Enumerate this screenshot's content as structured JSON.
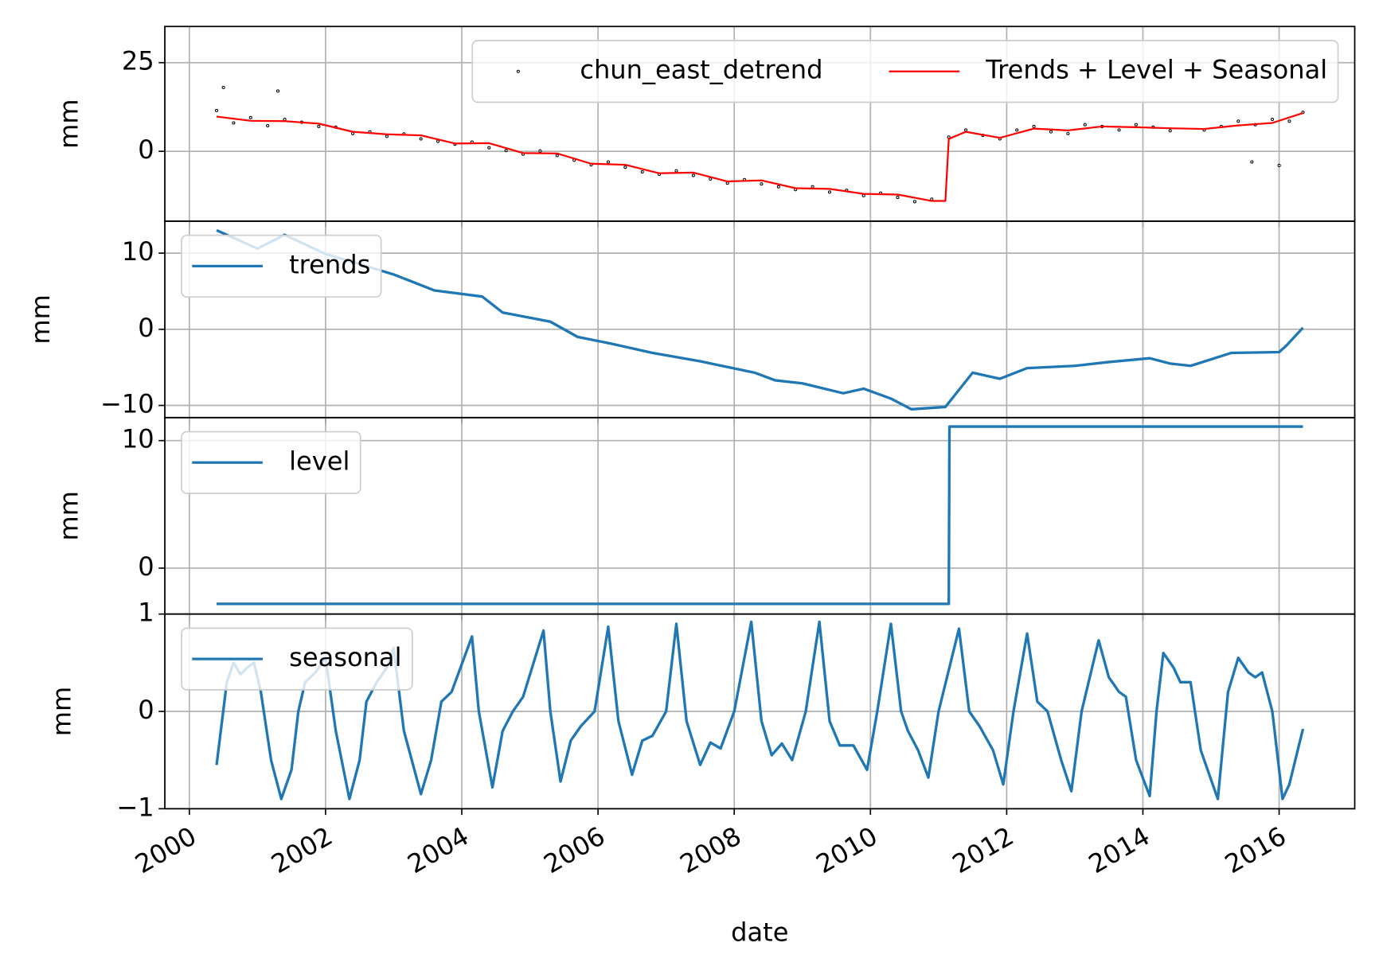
{
  "chart_data": [
    {
      "type": "line",
      "ylabel": "mm",
      "ylim": [
        -19.7,
        35.2
      ],
      "yticks": [
        0,
        25
      ],
      "xlim": [
        1999.64,
        2017.11
      ],
      "xticks": [
        2000,
        2002,
        2004,
        2006,
        2008,
        2010,
        2012,
        2014,
        2016
      ],
      "grid": true,
      "legend": "upper right",
      "series": [
        {
          "name": "chun_east_detrend",
          "type": "scatter",
          "color": "#000000",
          "x": [
            2000.4,
            2000.65,
            2000.9,
            2001.15,
            2001.4,
            2001.65,
            2001.9,
            2002.15,
            2002.4,
            2002.65,
            2002.9,
            2003.15,
            2003.4,
            2003.65,
            2003.9,
            2004.15,
            2004.4,
            2004.65,
            2004.9,
            2005.15,
            2005.4,
            2005.65,
            2005.9,
            2006.15,
            2006.4,
            2006.65,
            2006.9,
            2007.15,
            2007.4,
            2007.65,
            2007.9,
            2008.15,
            2008.4,
            2008.65,
            2008.9,
            2009.15,
            2009.4,
            2009.65,
            2009.9,
            2010.15,
            2010.4,
            2010.65,
            2010.9,
            2011.15,
            2011.4,
            2011.65,
            2011.9,
            2012.15,
            2012.4,
            2012.65,
            2012.9,
            2013.15,
            2013.4,
            2013.65,
            2013.9,
            2014.15,
            2014.4,
            2014.9,
            2015.15,
            2015.4,
            2015.65,
            2015.9,
            2016.15,
            2016.35,
            2000.5,
            2001.3,
            2015.6,
            2016.0
          ],
          "values": [
            11.5,
            8.0,
            9.5,
            7.2,
            9.0,
            8.2,
            7.0,
            6.8,
            5.0,
            5.5,
            4.2,
            4.9,
            3.5,
            2.8,
            2.0,
            2.6,
            1.0,
            0.2,
            -0.8,
            0.1,
            -1.2,
            -2.5,
            -3.8,
            -3.0,
            -4.5,
            -5.8,
            -6.5,
            -5.5,
            -6.8,
            -7.8,
            -9.0,
            -8.0,
            -9.2,
            -10.0,
            -10.8,
            -10.0,
            -11.5,
            -11.0,
            -12.5,
            -11.8,
            -13.0,
            -14.2,
            -13.5,
            4.0,
            6.0,
            4.5,
            3.5,
            6.0,
            7.0,
            5.5,
            5.0,
            7.5,
            7.0,
            6.0,
            7.5,
            6.8,
            5.8,
            6.0,
            7.0,
            8.5,
            7.5,
            9.0,
            8.5,
            11.0,
            18,
            17,
            -3,
            -4
          ]
        },
        {
          "name": "Trends + Level + Seasonal",
          "type": "line",
          "color": "#ff0000",
          "x": [
            2000.4,
            2000.9,
            2001.4,
            2001.9,
            2002.4,
            2002.9,
            2003.4,
            2003.9,
            2004.4,
            2004.9,
            2005.4,
            2005.9,
            2006.4,
            2006.9,
            2007.4,
            2007.9,
            2008.4,
            2008.9,
            2009.4,
            2009.9,
            2010.4,
            2010.9,
            2011.1,
            2011.15,
            2011.4,
            2011.9,
            2012.4,
            2012.9,
            2013.4,
            2013.9,
            2014.4,
            2014.9,
            2015.4,
            2015.9,
            2016.35
          ],
          "values": [
            9.8,
            8.6,
            8.5,
            7.8,
            5.5,
            4.8,
            4.5,
            2.2,
            2.3,
            -0.5,
            -0.6,
            -3.5,
            -3.8,
            -6.2,
            -6.0,
            -8.5,
            -8.2,
            -10.4,
            -10.6,
            -12.0,
            -12.2,
            -14.0,
            -14.0,
            3.5,
            5.5,
            3.8,
            6.4,
            5.9,
            7.0,
            6.8,
            6.5,
            6.3,
            7.3,
            8.0,
            10.8
          ]
        }
      ]
    },
    {
      "type": "line",
      "ylabel": "mm",
      "ylim": [
        -11.6,
        14.2
      ],
      "yticks": [
        {
          "value": -10,
          "label": "−10"
        },
        0,
        10
      ],
      "xlim": [
        1999.64,
        2017.11
      ],
      "xticks": [
        2000,
        2002,
        2004,
        2006,
        2008,
        2010,
        2012,
        2014,
        2016
      ],
      "grid": true,
      "legend": "upper left",
      "series": [
        {
          "name": "trends",
          "type": "line",
          "color": "#1f77b4",
          "x": [
            2000.4,
            2001.0,
            2001.4,
            2002.0,
            2003.0,
            2003.6,
            2004.3,
            2004.6,
            2005.3,
            2005.7,
            2006.2,
            2006.8,
            2007.5,
            2008.3,
            2008.6,
            2009.0,
            2009.6,
            2009.9,
            2010.3,
            2010.6,
            2011.1,
            2011.5,
            2011.9,
            2012.3,
            2013.0,
            2013.5,
            2014.1,
            2014.4,
            2014.7,
            2015.3,
            2016.0,
            2016.1,
            2016.35
          ],
          "values": [
            13.0,
            10.6,
            12.4,
            9.9,
            7.2,
            5.1,
            4.3,
            2.2,
            1.0,
            -1.0,
            -1.9,
            -3.1,
            -4.2,
            -5.7,
            -6.7,
            -7.1,
            -8.4,
            -7.8,
            -9.1,
            -10.5,
            -10.2,
            -5.7,
            -6.5,
            -5.1,
            -4.8,
            -4.3,
            -3.8,
            -4.5,
            -4.8,
            -3.1,
            -3.0,
            -2.2,
            0.2
          ]
        }
      ]
    },
    {
      "type": "line",
      "ylabel": "mm",
      "ylim": [
        -3.6,
        11.8
      ],
      "yticks": [
        0,
        10
      ],
      "xlim": [
        1999.64,
        2017.11
      ],
      "xticks": [
        2000,
        2002,
        2004,
        2006,
        2008,
        2010,
        2012,
        2014,
        2016
      ],
      "grid": true,
      "legend": "upper left",
      "series": [
        {
          "name": "level",
          "type": "line",
          "color": "#1f77b4",
          "x": [
            2000.4,
            2011.15,
            2011.16,
            2016.35
          ],
          "values": [
            -2.8,
            -2.8,
            11.1,
            11.1
          ]
        }
      ]
    },
    {
      "type": "line",
      "ylabel": "mm",
      "xlabel": "date",
      "ylim": [
        -1,
        1
      ],
      "yticks": [
        {
          "value": -1,
          "label": "−1"
        },
        0,
        1
      ],
      "xlim": [
        1999.64,
        2017.11
      ],
      "xticks": [
        2000,
        2002,
        2004,
        2006,
        2008,
        2010,
        2012,
        2014,
        2016
      ],
      "grid": true,
      "legend": "upper left",
      "series": [
        {
          "name": "seasonal",
          "type": "line",
          "color": "#1f77b4",
          "x": [
            2000.4,
            2000.55,
            2000.65,
            2000.75,
            2000.85,
            2000.95,
            2001.05,
            2001.2,
            2001.35,
            2001.5,
            2001.6,
            2001.7,
            2001.85,
            2002.0,
            2002.15,
            2002.35,
            2002.5,
            2002.6,
            2002.75,
            2002.9,
            2003.0,
            2003.15,
            2003.4,
            2003.55,
            2003.7,
            2003.85,
            2004.15,
            2004.25,
            2004.45,
            2004.6,
            2004.75,
            2004.9,
            2005.2,
            2005.3,
            2005.45,
            2005.6,
            2005.75,
            2005.95,
            2006.15,
            2006.3,
            2006.5,
            2006.65,
            2006.8,
            2007.0,
            2007.15,
            2007.3,
            2007.5,
            2007.65,
            2007.8,
            2008.0,
            2008.25,
            2008.4,
            2008.55,
            2008.7,
            2008.85,
            2009.05,
            2009.25,
            2009.4,
            2009.55,
            2009.75,
            2009.95,
            2010.1,
            2010.3,
            2010.45,
            2010.55,
            2010.7,
            2010.85,
            2011.0,
            2011.3,
            2011.45,
            2011.6,
            2011.8,
            2011.95,
            2012.1,
            2012.3,
            2012.45,
            2012.6,
            2012.8,
            2012.95,
            2013.1,
            2013.35,
            2013.5,
            2013.65,
            2013.75,
            2013.9,
            2014.1,
            2014.2,
            2014.3,
            2014.45,
            2014.55,
            2014.7,
            2014.85,
            2015.1,
            2015.25,
            2015.4,
            2015.55,
            2015.65,
            2015.75,
            2015.9,
            2016.05,
            2016.15,
            2016.35
          ],
          "values": [
            -0.55,
            0.3,
            0.5,
            0.38,
            0.45,
            0.5,
            0.2,
            -0.5,
            -0.9,
            -0.6,
            0.0,
            0.3,
            0.4,
            0.55,
            -0.2,
            -0.9,
            -0.5,
            0.1,
            0.3,
            0.45,
            0.65,
            -0.2,
            -0.85,
            -0.5,
            0.1,
            0.2,
            0.77,
            0.0,
            -0.78,
            -0.2,
            0.0,
            0.15,
            0.83,
            0.0,
            -0.72,
            -0.3,
            -0.15,
            0.0,
            0.87,
            -0.1,
            -0.65,
            -0.3,
            -0.25,
            0.0,
            0.9,
            -0.1,
            -0.55,
            -0.32,
            -0.38,
            0.0,
            0.92,
            -0.1,
            -0.45,
            -0.33,
            -0.5,
            0.0,
            0.92,
            -0.1,
            -0.35,
            -0.35,
            -0.6,
            0.0,
            0.9,
            0.0,
            -0.2,
            -0.4,
            -0.68,
            0.0,
            0.85,
            0.0,
            -0.15,
            -0.4,
            -0.75,
            0.0,
            0.8,
            0.1,
            0.0,
            -0.5,
            -0.82,
            0.0,
            0.73,
            0.35,
            0.2,
            0.15,
            -0.5,
            -0.87,
            0.0,
            0.6,
            0.45,
            0.3,
            0.3,
            -0.4,
            -0.9,
            0.2,
            0.55,
            0.4,
            0.35,
            0.4,
            0.0,
            -0.9,
            -0.75,
            -0.18
          ]
        }
      ]
    }
  ]
}
